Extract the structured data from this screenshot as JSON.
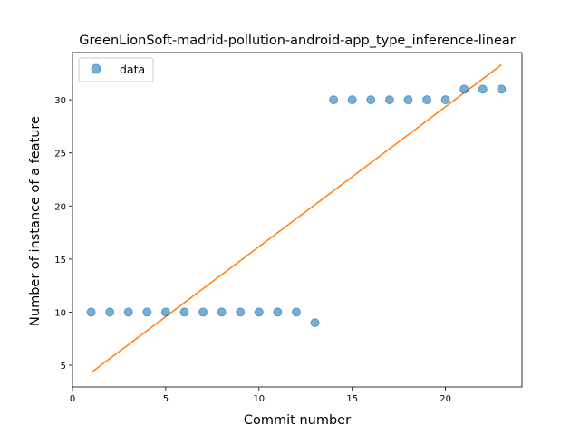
{
  "chart_data": {
    "type": "scatter",
    "title": "GreenLionSoft-madrid-pollution-android-app_type_inference-linear",
    "xlabel": "Commit number",
    "ylabel": "Number of instance of a feature",
    "xlim": [
      0,
      24.1
    ],
    "ylim": [
      2.95,
      34.45
    ],
    "xticks": [
      0,
      5,
      10,
      15,
      20
    ],
    "yticks": [
      5,
      10,
      15,
      20,
      25,
      30
    ],
    "grid": false,
    "legend_position": "top-left",
    "series": [
      {
        "name": "data",
        "kind": "scatter",
        "color": "#1f77b4",
        "x": [
          1,
          2,
          3,
          4,
          5,
          6,
          7,
          8,
          9,
          10,
          11,
          12,
          13,
          14,
          15,
          16,
          17,
          18,
          19,
          20,
          21,
          22,
          23
        ],
        "y": [
          10,
          10,
          10,
          10,
          10,
          10,
          10,
          10,
          10,
          10,
          10,
          10,
          9,
          30,
          30,
          30,
          30,
          30,
          30,
          30,
          31,
          31,
          31
        ]
      },
      {
        "kind": "line",
        "color": "#ff7f0e",
        "x": [
          1,
          23
        ],
        "y": [
          4.3,
          33.3
        ]
      }
    ]
  }
}
